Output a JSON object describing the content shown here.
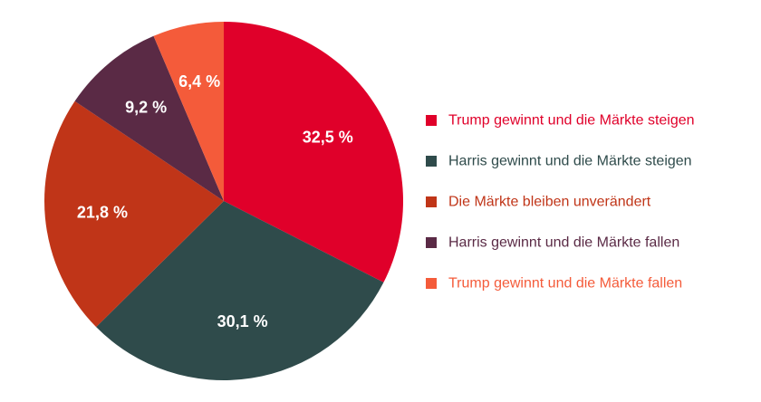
{
  "chart_data": {
    "type": "pie",
    "slices": [
      {
        "label": "Trump gewinnt und die Märkte steigen",
        "value": 32.5,
        "display": "32,5 %",
        "color": "#e0002a"
      },
      {
        "label": "Harris gewinnt und die Märkte steigen",
        "value": 30.1,
        "display": "30,1 %",
        "color": "#2f4b4b"
      },
      {
        "label": "Die Märkte bleiben unverändert",
        "value": 21.8,
        "display": "21,8 %",
        "color": "#c03518"
      },
      {
        "label": "Harris gewinnt und die Märkte fallen",
        "value": 9.2,
        "display": "9,2 %",
        "color": "#5a2a45"
      },
      {
        "label": "Trump gewinnt und die Märkte fallen",
        "value": 6.4,
        "display": "6,4 %",
        "color": "#f45b3a"
      }
    ],
    "legend_position": "right",
    "start_angle": "top",
    "direction": "clockwise"
  }
}
